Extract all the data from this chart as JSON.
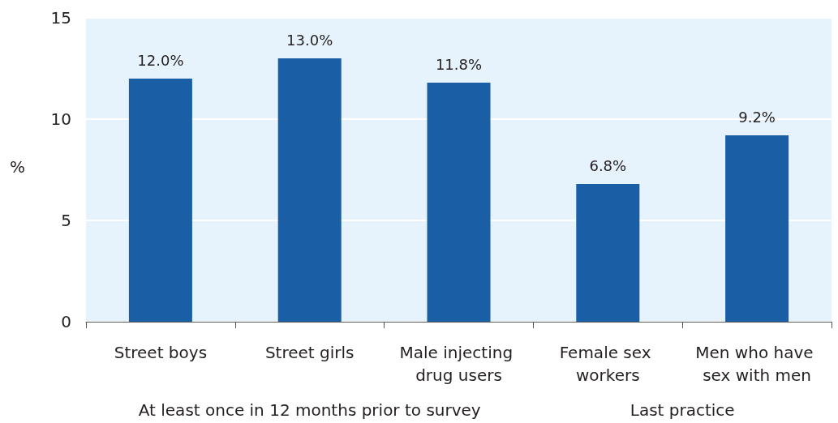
{
  "chart_data": {
    "type": "bar",
    "ylabel": "%",
    "categories": [
      "Street boys",
      "Street girls",
      "Male injecting drug users",
      "Female sex workers",
      "Men who have sex with men"
    ],
    "values": [
      12.0,
      13.0,
      11.8,
      6.8,
      9.2
    ],
    "value_labels": [
      "12.0%",
      "13.0%",
      "11.8%",
      "6.8%",
      "9.2%"
    ],
    "color": "#1a5fa6",
    "ylim": [
      0,
      15
    ],
    "yticks": [
      0,
      5,
      10,
      15
    ],
    "grid": "y",
    "annotations": [
      "At least once in 12 months prior to survey",
      "Last practice"
    ]
  }
}
